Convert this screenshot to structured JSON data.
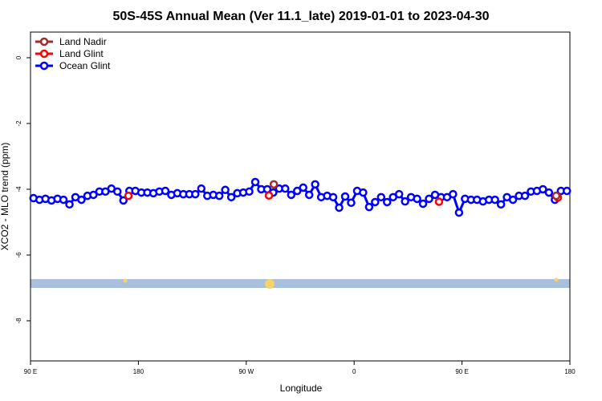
{
  "chart_data": {
    "type": "line",
    "title": "50S-45S Annual Mean (Ver 11.1_late)   2019-01-01 to 2023-04-30",
    "xlabel": "Longitude",
    "ylabel": "XCO2 - MLO trend (ppm)",
    "xlim": [
      90,
      540
    ],
    "ylim": [
      -9.22,
      0.78
    ],
    "xticks": [
      {
        "value": 90,
        "label": "90 E"
      },
      180,
      {
        "value": 270,
        "label": "90 W"
      },
      {
        "value": 360,
        "label": "0"
      },
      {
        "value": 450,
        "label": "90 E"
      },
      {
        "value": 540,
        "label": "180"
      }
    ],
    "yticks": [
      0,
      -2,
      -4,
      -6,
      -8
    ],
    "legend": "top-left",
    "series": [
      {
        "name": "Land Nadir",
        "color": "#a52a2a",
        "x": [
          293,
          528.6
        ],
        "values": [
          -3.85,
          -4.2
        ]
      },
      {
        "name": "Land Glint",
        "color": "#ff0000",
        "x": [
          171.7,
          288.9,
          430.8,
          530
        ],
        "values": [
          -4.2,
          -4.19,
          -4.38,
          -4.25
        ]
      },
      {
        "name": "Ocean Glint",
        "color": "#0000ff",
        "x": [
          92.5,
          97.5,
          102.5,
          107.5,
          112.5,
          117.5,
          122.5,
          127.5,
          132.5,
          137.5,
          142.5,
          147.5,
          152.5,
          157.5,
          162.5,
          167.5,
          172.5,
          177.5,
          182.5,
          187.5,
          192.5,
          197.5,
          202.5,
          207.5,
          212.5,
          217.5,
          222.5,
          227.5,
          232.5,
          237.5,
          242.5,
          247.5,
          252.5,
          257.5,
          262.5,
          267.5,
          272.5,
          277.5,
          282.5,
          287.5,
          292.5,
          297.5,
          302.5,
          307.5,
          312.5,
          317.5,
          322.5,
          327.5,
          332.5,
          337.5,
          342.5,
          347.5,
          352.5,
          357.5,
          362.5,
          367.5,
          372.5,
          377.5,
          382.5,
          387.5,
          392.5,
          397.5,
          402.5,
          407.5,
          412.5,
          417.5,
          422.5,
          427.5,
          432.5,
          437.5,
          442.5,
          447.5,
          452.5,
          457.5,
          462.5,
          467.5,
          472.5,
          477.5,
          482.5,
          487.5,
          492.5,
          497.5,
          502.5,
          507.5,
          512.5,
          517.5,
          522.5,
          527.5,
          532.5,
          537.5
        ],
        "values": [
          -4.27,
          -4.32,
          -4.29,
          -4.34,
          -4.29,
          -4.32,
          -4.46,
          -4.24,
          -4.32,
          -4.2,
          -4.17,
          -4.07,
          -4.07,
          -3.98,
          -4.07,
          -4.34,
          -4.05,
          -4.05,
          -4.1,
          -4.1,
          -4.12,
          -4.07,
          -4.05,
          -4.17,
          -4.12,
          -4.15,
          -4.15,
          -4.15,
          -3.98,
          -4.2,
          -4.17,
          -4.2,
          -4.02,
          -4.24,
          -4.12,
          -4.1,
          -4.07,
          -3.78,
          -4.0,
          -4.0,
          -4.1,
          -3.98,
          -3.98,
          -4.17,
          -4.05,
          -3.95,
          -4.17,
          -3.85,
          -4.24,
          -4.2,
          -4.24,
          -4.56,
          -4.22,
          -4.41,
          -4.05,
          -4.1,
          -4.54,
          -4.39,
          -4.24,
          -4.39,
          -4.24,
          -4.15,
          -4.37,
          -4.24,
          -4.29,
          -4.44,
          -4.29,
          -4.17,
          -4.24,
          -4.24,
          -4.15,
          -4.71,
          -4.29,
          -4.32,
          -4.32,
          -4.37,
          -4.32,
          -4.32,
          -4.46,
          -4.24,
          -4.32,
          -4.2,
          -4.2,
          -4.07,
          -4.05,
          -4.0,
          -4.1,
          -4.32,
          -4.05,
          -4.05
        ]
      }
    ]
  }
}
